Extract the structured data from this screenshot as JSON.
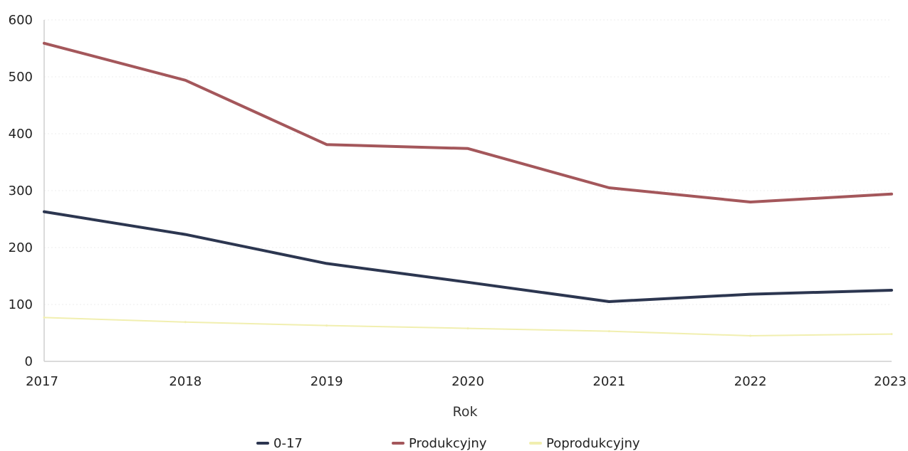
{
  "chart_data": {
    "type": "line",
    "title": "",
    "xlabel": "Rok",
    "ylabel": "",
    "x": [
      "2017",
      "2018",
      "2019",
      "2020",
      "2021",
      "2022",
      "2023"
    ],
    "ylim": [
      0,
      600
    ],
    "yticks": [
      0,
      100,
      200,
      300,
      400,
      500,
      600
    ],
    "grid": true,
    "legend_position": "bottom",
    "series": [
      {
        "name": "0-17",
        "color": "#2c3650",
        "values": [
          263,
          223,
          172,
          139,
          105,
          118,
          125
        ]
      },
      {
        "name": "Produkcyjny",
        "color": "#a4575b",
        "values": [
          559,
          494,
          381,
          374,
          305,
          280,
          294
        ]
      },
      {
        "name": "Poprodukcyjny",
        "color": "#f1efb0",
        "values": [
          77,
          69,
          63,
          58,
          53,
          45,
          48
        ]
      }
    ]
  }
}
